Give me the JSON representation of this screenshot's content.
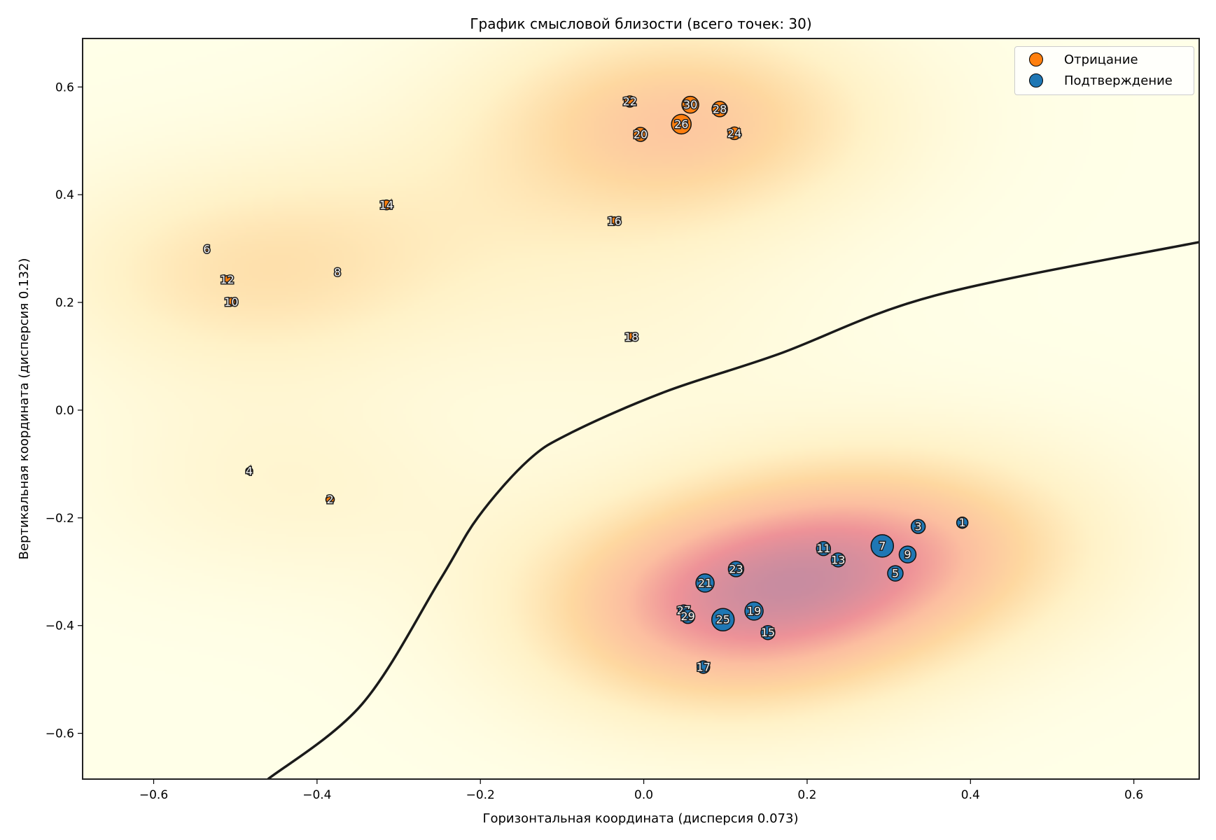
{
  "chart_data": {
    "type": "scatter",
    "title": "График смысловой близости (всего точек: 30)",
    "xlabel": "Горизонтальная координата (дисперсия 0.073)",
    "ylabel": "Вертикальная координата (дисперсия 0.132)",
    "xlim": [
      -0.687,
      0.68
    ],
    "ylim": [
      -0.685,
      0.69
    ],
    "xticks": [
      -0.6,
      -0.4,
      -0.2,
      0.0,
      0.2,
      0.4,
      0.6
    ],
    "xtick_labels": [
      "−0.6",
      "−0.4",
      "−0.2",
      "0.0",
      "0.2",
      "0.4",
      "0.6"
    ],
    "yticks": [
      0.6,
      0.4,
      0.2,
      0.0,
      -0.2,
      -0.4,
      -0.6
    ],
    "ytick_labels": [
      "0.6",
      "0.4",
      "0.2",
      "0.0",
      "−0.2",
      "−0.4",
      "−0.6"
    ],
    "grid": false,
    "legend_position": "top-right",
    "background": "density heatmap (YlOrRd-like), higher density near point clusters",
    "decision_boundary": {
      "color": "#1a1a1a",
      "points": [
        [
          -0.46,
          -0.685
        ],
        [
          -0.345,
          -0.546
        ],
        [
          -0.249,
          -0.314
        ],
        [
          -0.203,
          -0.199
        ],
        [
          -0.142,
          -0.094
        ],
        [
          -0.089,
          -0.042
        ],
        [
          0.026,
          0.034
        ],
        [
          0.165,
          0.104
        ],
        [
          0.357,
          0.213
        ],
        [
          0.68,
          0.312
        ]
      ]
    },
    "series": [
      {
        "name": "Отрицание",
        "color": "#ff7f0e",
        "points": [
          {
            "id": 2,
            "x": -0.384,
            "y": -0.166,
            "size": 6
          },
          {
            "id": 4,
            "x": -0.483,
            "y": -0.113,
            "size": 5
          },
          {
            "id": 6,
            "x": -0.535,
            "y": 0.299,
            "size": 3
          },
          {
            "id": 8,
            "x": -0.375,
            "y": 0.256,
            "size": 4
          },
          {
            "id": 10,
            "x": -0.505,
            "y": 0.201,
            "size": 6
          },
          {
            "id": 12,
            "x": -0.51,
            "y": 0.242,
            "size": 6
          },
          {
            "id": 14,
            "x": -0.315,
            "y": 0.381,
            "size": 7
          },
          {
            "id": 16,
            "x": -0.036,
            "y": 0.351,
            "size": 6
          },
          {
            "id": 18,
            "x": -0.015,
            "y": 0.136,
            "size": 6
          },
          {
            "id": 20,
            "x": -0.004,
            "y": 0.512,
            "size": 10
          },
          {
            "id": 22,
            "x": -0.017,
            "y": 0.573,
            "size": 8
          },
          {
            "id": 24,
            "x": 0.111,
            "y": 0.514,
            "size": 9
          },
          {
            "id": 26,
            "x": 0.046,
            "y": 0.531,
            "size": 14
          },
          {
            "id": 28,
            "x": 0.093,
            "y": 0.559,
            "size": 11
          },
          {
            "id": 30,
            "x": 0.057,
            "y": 0.567,
            "size": 12
          }
        ]
      },
      {
        "name": "Подтверждение",
        "color": "#1f77b4",
        "points": [
          {
            "id": 1,
            "x": 0.39,
            "y": -0.209,
            "size": 8
          },
          {
            "id": 3,
            "x": 0.336,
            "y": -0.216,
            "size": 10
          },
          {
            "id": 5,
            "x": 0.308,
            "y": -0.303,
            "size": 11
          },
          {
            "id": 7,
            "x": 0.292,
            "y": -0.252,
            "size": 16
          },
          {
            "id": 9,
            "x": 0.323,
            "y": -0.268,
            "size": 12
          },
          {
            "id": 11,
            "x": 0.22,
            "y": -0.257,
            "size": 10
          },
          {
            "id": 13,
            "x": 0.238,
            "y": -0.278,
            "size": 10
          },
          {
            "id": 15,
            "x": 0.152,
            "y": -0.413,
            "size": 10
          },
          {
            "id": 17,
            "x": 0.073,
            "y": -0.477,
            "size": 9
          },
          {
            "id": 19,
            "x": 0.135,
            "y": -0.373,
            "size": 13
          },
          {
            "id": 21,
            "x": 0.075,
            "y": -0.321,
            "size": 13
          },
          {
            "id": 23,
            "x": 0.113,
            "y": -0.295,
            "size": 11
          },
          {
            "id": 25,
            "x": 0.097,
            "y": -0.389,
            "size": 16
          },
          {
            "id": 27,
            "x": 0.049,
            "y": -0.372,
            "size": 8
          },
          {
            "id": 29,
            "x": 0.054,
            "y": -0.383,
            "size": 10
          }
        ]
      }
    ]
  },
  "legend": {
    "items": [
      {
        "label": "Отрицание",
        "color": "#ff7f0e"
      },
      {
        "label": "Подтверждение",
        "color": "#1f77b4"
      }
    ]
  }
}
